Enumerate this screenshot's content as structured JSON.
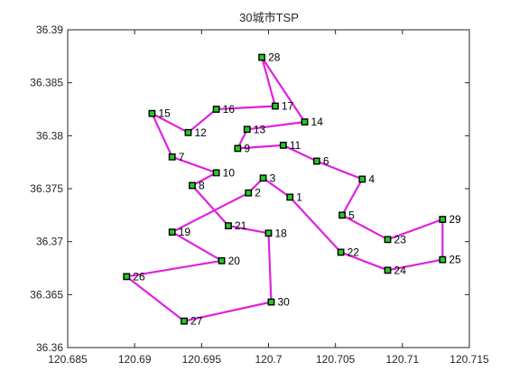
{
  "chart_data": {
    "type": "line",
    "title": "30城市TSP",
    "xlabel": "",
    "ylabel": "",
    "xlim": [
      120.685,
      120.715
    ],
    "ylim": [
      36.36,
      36.39
    ],
    "x_ticks": [
      120.685,
      120.69,
      120.695,
      120.7,
      120.705,
      120.71,
      120.715
    ],
    "x_tick_labels": [
      "120.685",
      "120.69",
      "120.695",
      "120.7",
      "120.705",
      "120.71",
      "120.715"
    ],
    "y_ticks": [
      36.36,
      36.365,
      36.37,
      36.375,
      36.38,
      36.385,
      36.39
    ],
    "y_tick_labels": [
      "36.36",
      "36.365",
      "36.37",
      "36.375",
      "36.38",
      "36.385",
      "36.39"
    ],
    "grid": false,
    "route_color": "#e020e0",
    "marker_fill": "#22cc22",
    "marker_edge": "#000000",
    "cities": [
      {
        "id": 1,
        "label": "1",
        "x": 120.7016,
        "y": 36.3742
      },
      {
        "id": 2,
        "label": "2",
        "x": 120.6985,
        "y": 36.3746
      },
      {
        "id": 3,
        "label": "3",
        "x": 120.6996,
        "y": 36.376
      },
      {
        "id": 4,
        "label": "4",
        "x": 120.707,
        "y": 36.3759
      },
      {
        "id": 5,
        "label": "5",
        "x": 120.7055,
        "y": 36.3725
      },
      {
        "id": 6,
        "label": "6",
        "x": 120.7036,
        "y": 36.3776
      },
      {
        "id": 7,
        "label": "7",
        "x": 120.6928,
        "y": 36.378
      },
      {
        "id": 8,
        "label": "8",
        "x": 120.6943,
        "y": 36.3753
      },
      {
        "id": 9,
        "label": "9",
        "x": 120.6977,
        "y": 36.3788
      },
      {
        "id": 10,
        "label": "10",
        "x": 120.6961,
        "y": 36.3765
      },
      {
        "id": 11,
        "label": "11",
        "x": 120.7011,
        "y": 36.3791
      },
      {
        "id": 12,
        "label": "12",
        "x": 120.694,
        "y": 36.3803
      },
      {
        "id": 13,
        "label": "13",
        "x": 120.6984,
        "y": 36.3806
      },
      {
        "id": 14,
        "label": "14",
        "x": 120.7027,
        "y": 36.3813
      },
      {
        "id": 15,
        "label": "15",
        "x": 120.6913,
        "y": 36.3821
      },
      {
        "id": 16,
        "label": "16",
        "x": 120.6961,
        "y": 36.3825
      },
      {
        "id": 17,
        "label": "17",
        "x": 120.7005,
        "y": 36.3828
      },
      {
        "id": 18,
        "label": "18",
        "x": 120.7,
        "y": 36.3708
      },
      {
        "id": 19,
        "label": "19",
        "x": 120.6928,
        "y": 36.3709
      },
      {
        "id": 20,
        "label": "20",
        "x": 120.6965,
        "y": 36.3682
      },
      {
        "id": 21,
        "label": "21",
        "x": 120.697,
        "y": 36.3715
      },
      {
        "id": 22,
        "label": "22",
        "x": 120.7054,
        "y": 36.369
      },
      {
        "id": 23,
        "label": "23",
        "x": 120.7089,
        "y": 36.3702
      },
      {
        "id": 24,
        "label": "24",
        "x": 120.7089,
        "y": 36.3673
      },
      {
        "id": 25,
        "label": "25",
        "x": 120.713,
        "y": 36.3683
      },
      {
        "id": 26,
        "label": "26",
        "x": 120.6894,
        "y": 36.3667
      },
      {
        "id": 27,
        "label": "27",
        "x": 120.6937,
        "y": 36.3625
      },
      {
        "id": 28,
        "label": "28",
        "x": 120.6995,
        "y": 36.3874
      },
      {
        "id": 29,
        "label": "29",
        "x": 120.713,
        "y": 36.3721
      },
      {
        "id": 30,
        "label": "30",
        "x": 120.7002,
        "y": 36.3643
      }
    ],
    "route": [
      8,
      10,
      7,
      15,
      12,
      16,
      17,
      28,
      14,
      13,
      9,
      11,
      6,
      4,
      5,
      23,
      29,
      25,
      24,
      22,
      1,
      3,
      2,
      19,
      20,
      26,
      27,
      30,
      18,
      21,
      8
    ]
  }
}
